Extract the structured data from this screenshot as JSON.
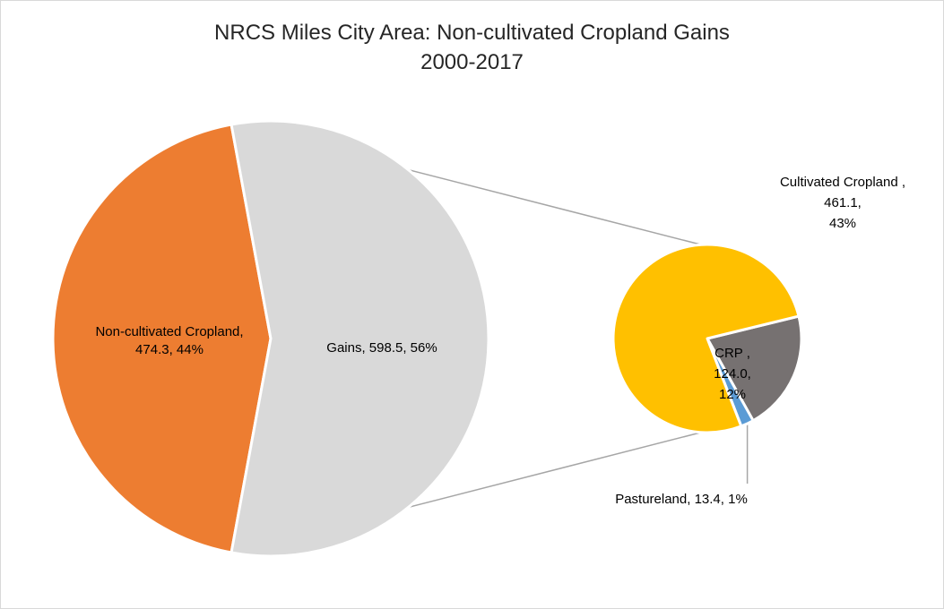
{
  "chart_data": {
    "type": "pie",
    "subtype": "pie-of-pie",
    "title": "NRCS Miles City Area: Non-cultivated Cropland Gains",
    "subtitle": "2000-2017",
    "primary": [
      {
        "name": "Non-cultivated Cropland",
        "value": 474.3,
        "percent": "44%",
        "color": "#ED7D31",
        "label_lines": [
          "Non-cultivated Cropland,",
          "474.3, 44%"
        ]
      },
      {
        "name": "Gains",
        "value": 598.5,
        "percent": "56%",
        "color": "#D9D9D9",
        "label_lines": [
          "Gains, 598.5, 56%"
        ]
      }
    ],
    "secondary": [
      {
        "name": "Cultivated Cropland",
        "value": 461.1,
        "percent": "43%",
        "color": "#FFC000",
        "label_lines": [
          "Cultivated Cropland ,",
          "461.1,",
          "43%"
        ]
      },
      {
        "name": "CRP",
        "value": 124.0,
        "percent": "12%",
        "color": "#767171",
        "label_lines": [
          "CRP ,",
          "124.0,",
          "12%"
        ]
      },
      {
        "name": "Pastureland",
        "value": 13.4,
        "percent": "1%",
        "color": "#5B9BD5",
        "label_lines": [
          "Pastureland, 13.4, 1%"
        ]
      }
    ]
  }
}
